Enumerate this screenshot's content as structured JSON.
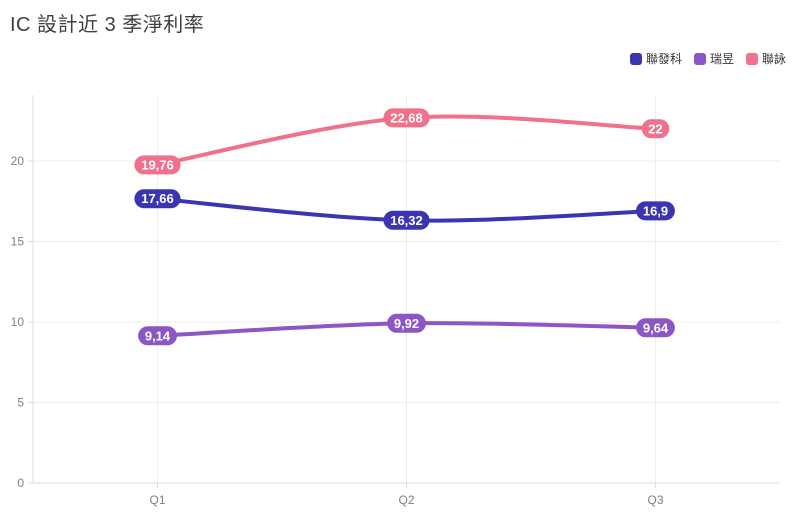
{
  "title": "IC 設計近 3 季淨利率",
  "legend": [
    {
      "label": "聯發科",
      "color": "#3b35b1"
    },
    {
      "label": "瑞昱",
      "color": "#8b57c5"
    },
    {
      "label": "聯詠",
      "color": "#f0718c"
    }
  ],
  "colors": {
    "title_text": "#3f3f3f",
    "axis_text": "#808080",
    "grid_line": "#ededed",
    "axis_line": "#dddddd",
    "label_text_on_pill": "#ffffff"
  },
  "chart_data": {
    "type": "line",
    "title": "IC 設計近 3 季淨利率",
    "categories": [
      "Q1",
      "Q2",
      "Q3"
    ],
    "series": [
      {
        "name": "聯詠",
        "color": "#f0718c",
        "values": [
          19.76,
          22.68,
          22
        ],
        "labels": [
          "19,76",
          "22,68",
          "22"
        ]
      },
      {
        "name": "聯發科",
        "color": "#3b35b1",
        "values": [
          17.66,
          16.32,
          16.9
        ],
        "labels": [
          "17,66",
          "16,32",
          "16,9"
        ]
      },
      {
        "name": "瑞昱",
        "color": "#8b57c5",
        "values": [
          9.14,
          9.92,
          9.64
        ],
        "labels": [
          "9,14",
          "9,92",
          "9,64"
        ]
      }
    ],
    "xlabel": "",
    "ylabel": "",
    "ylim": [
      0,
      24.1
    ],
    "yticks": [
      0,
      5,
      10,
      15,
      20
    ],
    "grid": true,
    "smooth": true,
    "legend_position": "top-right",
    "decimal_separator": ","
  }
}
